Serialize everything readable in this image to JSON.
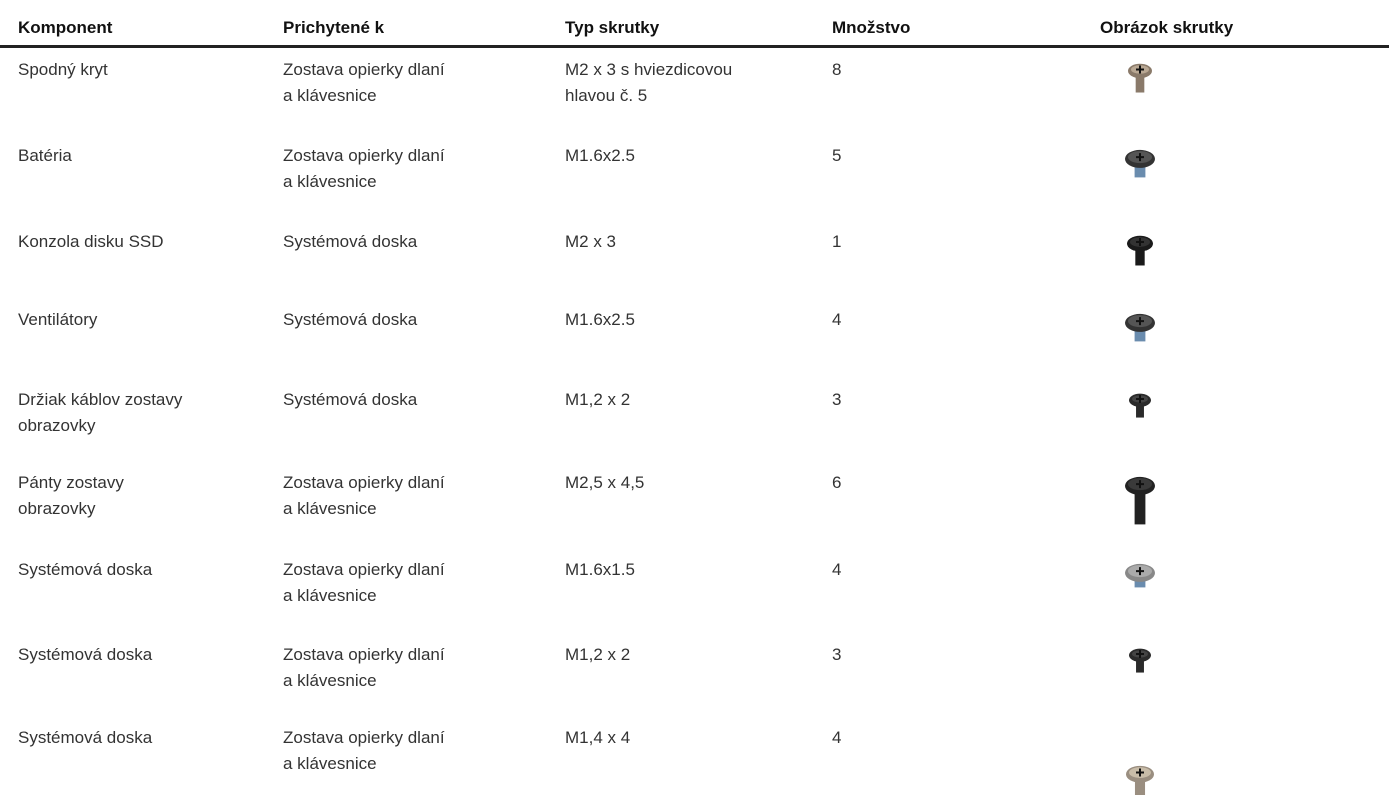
{
  "table": {
    "header": [
      "Komponent",
      "Prichytené k",
      "Typ skrutky",
      "Množstvo",
      "Obrázok skrutky"
    ],
    "rows": [
      [
        [
          "Spodný kryt"
        ],
        [
          "Zostava opierky dlaní",
          "a klávesnice"
        ],
        [
          "M2 x 3 s hviezdicovou",
          "hlavou č. 5"
        ],
        [
          "8"
        ]
      ],
      [
        [
          "Batéria"
        ],
        [
          "Zostava opierky dlaní",
          "a klávesnice"
        ],
        [
          "M1.6x2.5"
        ],
        [
          "5"
        ]
      ],
      [
        [
          "Konzola disku SSD"
        ],
        [
          "Systémová doska"
        ],
        [
          "M2 x 3"
        ],
        [
          "1"
        ]
      ],
      [
        [
          "Ventilátory"
        ],
        [
          "Systémová doska"
        ],
        [
          "M1.6x2.5"
        ],
        [
          "4"
        ]
      ],
      [
        [
          "Držiak káblov zostavy",
          "obrazovky"
        ],
        [
          "Systémová doska"
        ],
        [
          "M1,2 x 2"
        ],
        [
          "3"
        ]
      ],
      [
        [
          "Pánty zostavy",
          "obrazovky"
        ],
        [
          "Zostava opierky dlaní",
          "a klávesnice"
        ],
        [
          "M2,5 x 4,5"
        ],
        [
          "6"
        ]
      ],
      [
        [
          "Systémová doska"
        ],
        [
          "Zostava opierky dlaní",
          "a klávesnice"
        ],
        [
          "M1.6x1.5"
        ],
        [
          "4"
        ]
      ],
      [
        [
          "Systémová doska"
        ],
        [
          "Zostava opierky dlaní",
          "a klávesnice"
        ],
        [
          "M1,2 x 2"
        ],
        [
          "3"
        ]
      ],
      [
        [
          "Systémová doska"
        ],
        [
          "Zostava opierky dlaní",
          "a klávesnice"
        ],
        [
          "M1,4 x 4"
        ],
        [
          "4"
        ]
      ]
    ]
  }
}
